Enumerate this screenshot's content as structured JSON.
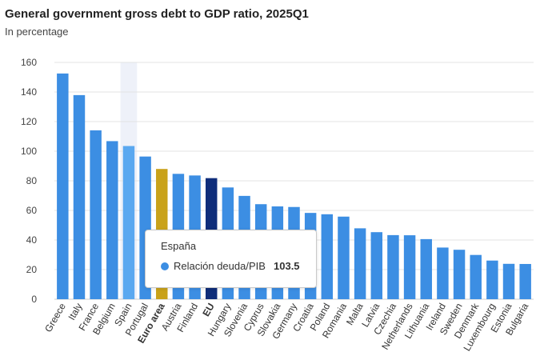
{
  "title": "General government gross debt to GDP ratio, 2025Q1",
  "subtitle": "In percentage",
  "colors": {
    "country": "#3c8ee3",
    "hover": "#5aa8f0",
    "euro_area": "#c9a21a",
    "eu": "#0f2d7a",
    "hover_band": "#eef1f9",
    "grid": "#e3e3e3"
  },
  "tooltip": {
    "title": "España",
    "series_label": "Relación deuda/PIB",
    "value": "103.5"
  },
  "chart_data": {
    "type": "bar",
    "title": "General government gross debt to GDP ratio, 2025Q1",
    "subtitle": "In percentage",
    "xlabel": "",
    "ylabel": "",
    "ylim": [
      0,
      160
    ],
    "yticks": [
      0,
      20,
      40,
      60,
      80,
      100,
      120,
      140,
      160
    ],
    "grid": true,
    "hovered_category": "Spain",
    "highlighted": {
      "Euro area": "euro_area",
      "EU": "eu"
    },
    "categories": [
      "Greece",
      "Italy",
      "France",
      "Belgium",
      "Spain",
      "Portugal",
      "Euro area",
      "Austria",
      "Finland",
      "EU",
      "Hungary",
      "Slovenia",
      "Cyprus",
      "Slovakia",
      "Germany",
      "Croatia",
      "Poland",
      "Romania",
      "Malta",
      "Latvia",
      "Czechia",
      "Netherlands",
      "Lithuania",
      "Ireland",
      "Sweden",
      "Denmark",
      "Luxembourg",
      "Estonia",
      "Bulgaria"
    ],
    "values": [
      152.5,
      137.9,
      114.1,
      106.8,
      103.5,
      96.4,
      88.0,
      84.7,
      83.6,
      81.8,
      75.5,
      69.8,
      64.2,
      62.7,
      62.3,
      58.3,
      57.4,
      55.8,
      47.9,
      45.3,
      43.3,
      43.2,
      40.6,
      34.9,
      33.4,
      29.9,
      26.1,
      23.9,
      23.8
    ]
  }
}
